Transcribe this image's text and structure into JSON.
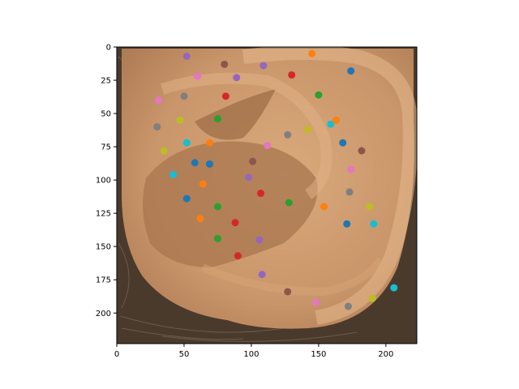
{
  "chart_data": {
    "type": "scatter",
    "background_image": "photo-of-human-ear",
    "x_axis": {
      "range": [
        0,
        223
      ],
      "ticks": [
        0,
        50,
        100,
        150,
        200
      ],
      "tick_labels": [
        "0",
        "50",
        "100",
        "150",
        "200"
      ]
    },
    "y_axis": {
      "range": [
        223,
        0
      ],
      "inverted": true,
      "ticks": [
        0,
        25,
        50,
        75,
        100,
        125,
        150,
        175,
        200
      ],
      "tick_labels": [
        "0",
        "25",
        "50",
        "75",
        "100",
        "125",
        "150",
        "175",
        "200"
      ]
    },
    "grid": false,
    "legend": "none",
    "points": [
      {
        "x": 52,
        "y": 7,
        "color": "#9467bd"
      },
      {
        "x": 80,
        "y": 13,
        "color": "#8c564b"
      },
      {
        "x": 109,
        "y": 14,
        "color": "#9467bd"
      },
      {
        "x": 145,
        "y": 5,
        "color": "#ff7f0e"
      },
      {
        "x": 174,
        "y": 18,
        "color": "#1f77b4"
      },
      {
        "x": 60,
        "y": 22,
        "color": "#e377c2"
      },
      {
        "x": 89,
        "y": 23,
        "color": "#9467bd"
      },
      {
        "x": 130,
        "y": 21,
        "color": "#d62728"
      },
      {
        "x": 31,
        "y": 40,
        "color": "#e377c2"
      },
      {
        "x": 50,
        "y": 37,
        "color": "#7f7f7f"
      },
      {
        "x": 81,
        "y": 37,
        "color": "#d62728"
      },
      {
        "x": 150,
        "y": 36,
        "color": "#2ca02c"
      },
      {
        "x": 30,
        "y": 60,
        "color": "#7f7f7f"
      },
      {
        "x": 47,
        "y": 55,
        "color": "#bcbd22"
      },
      {
        "x": 75,
        "y": 54,
        "color": "#2ca02c"
      },
      {
        "x": 142,
        "y": 62,
        "color": "#bcbd22"
      },
      {
        "x": 159,
        "y": 58,
        "color": "#17becf"
      },
      {
        "x": 163,
        "y": 55,
        "color": "#ff7f0e"
      },
      {
        "x": 127,
        "y": 66,
        "color": "#7f7f7f"
      },
      {
        "x": 35,
        "y": 78,
        "color": "#bcbd22"
      },
      {
        "x": 52,
        "y": 72,
        "color": "#17becf"
      },
      {
        "x": 69,
        "y": 72,
        "color": "#ff7f0e"
      },
      {
        "x": 112,
        "y": 74,
        "color": "#e377c2"
      },
      {
        "x": 168,
        "y": 72,
        "color": "#1f77b4"
      },
      {
        "x": 182,
        "y": 78,
        "color": "#8c564b"
      },
      {
        "x": 58,
        "y": 87,
        "color": "#1f77b4"
      },
      {
        "x": 69,
        "y": 88,
        "color": "#1f77b4"
      },
      {
        "x": 101,
        "y": 86,
        "color": "#8c564b"
      },
      {
        "x": 174,
        "y": 92,
        "color": "#e377c2"
      },
      {
        "x": 42,
        "y": 96,
        "color": "#17becf"
      },
      {
        "x": 98,
        "y": 98,
        "color": "#9467bd"
      },
      {
        "x": 64,
        "y": 103,
        "color": "#ff7f0e"
      },
      {
        "x": 107,
        "y": 110,
        "color": "#d62728"
      },
      {
        "x": 173,
        "y": 109,
        "color": "#7f7f7f"
      },
      {
        "x": 52,
        "y": 114,
        "color": "#1f77b4"
      },
      {
        "x": 75,
        "y": 120,
        "color": "#2ca02c"
      },
      {
        "x": 128,
        "y": 117,
        "color": "#2ca02c"
      },
      {
        "x": 154,
        "y": 120,
        "color": "#ff7f0e"
      },
      {
        "x": 188,
        "y": 120,
        "color": "#bcbd22"
      },
      {
        "x": 62,
        "y": 129,
        "color": "#ff7f0e"
      },
      {
        "x": 88,
        "y": 132,
        "color": "#d62728"
      },
      {
        "x": 171,
        "y": 133,
        "color": "#1f77b4"
      },
      {
        "x": 191,
        "y": 133,
        "color": "#17becf"
      },
      {
        "x": 75,
        "y": 144,
        "color": "#2ca02c"
      },
      {
        "x": 106,
        "y": 145,
        "color": "#9467bd"
      },
      {
        "x": 90,
        "y": 157,
        "color": "#d62728"
      },
      {
        "x": 108,
        "y": 171,
        "color": "#9467bd"
      },
      {
        "x": 127,
        "y": 184,
        "color": "#8c564b"
      },
      {
        "x": 206,
        "y": 181,
        "color": "#17becf"
      },
      {
        "x": 148,
        "y": 192,
        "color": "#e377c2"
      },
      {
        "x": 172,
        "y": 195,
        "color": "#7f7f7f"
      },
      {
        "x": 190,
        "y": 189,
        "color": "#bcbd22"
      }
    ]
  }
}
